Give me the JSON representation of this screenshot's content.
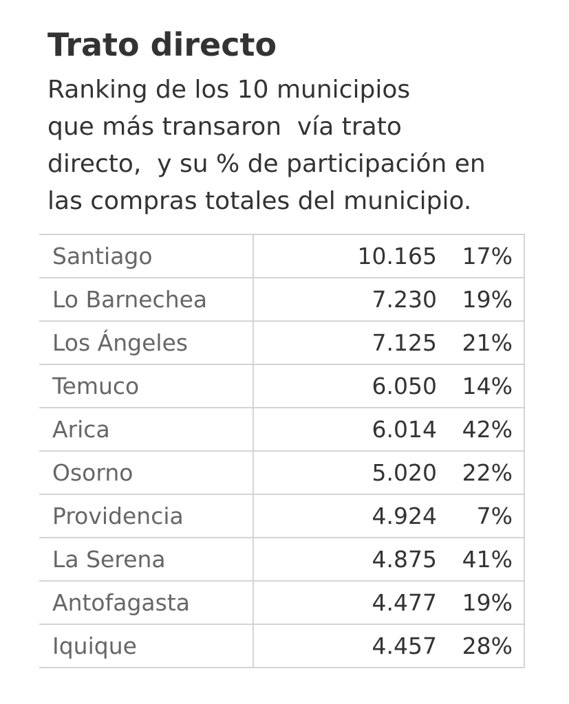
{
  "title": "Trato directo",
  "subtitle_lines": [
    "Ranking de los 10 municipios",
    "que más transaron  vía trato",
    "directo,  y su % de participación en",
    "las compras totales del municipio."
  ],
  "rows": [
    {
      "name": "Santiago",
      "amount": "10.165",
      "pct": "17%"
    },
    {
      "name": "Lo Barnechea",
      "amount": "7.230",
      "pct": "19%"
    },
    {
      "name": "Los Ángeles",
      "amount": "7.125",
      "pct": "21%"
    },
    {
      "name": "Temuco",
      "amount": "6.050",
      "pct": "14%"
    },
    {
      "name": "Arica",
      "amount": "6.014",
      "pct": "42%"
    },
    {
      "name": "Osorno",
      "amount": "5.020",
      "pct": "22%"
    },
    {
      "name": "Providencia",
      "amount": "4.924",
      "pct": "7%"
    },
    {
      "name": "La Serena",
      "amount": "4.875",
      "pct": "41%"
    },
    {
      "name": "Antofagasta",
      "amount": "4.477",
      "pct": "19%"
    },
    {
      "name": "Iquique",
      "amount": "4.457",
      "pct": "28%"
    }
  ]
}
